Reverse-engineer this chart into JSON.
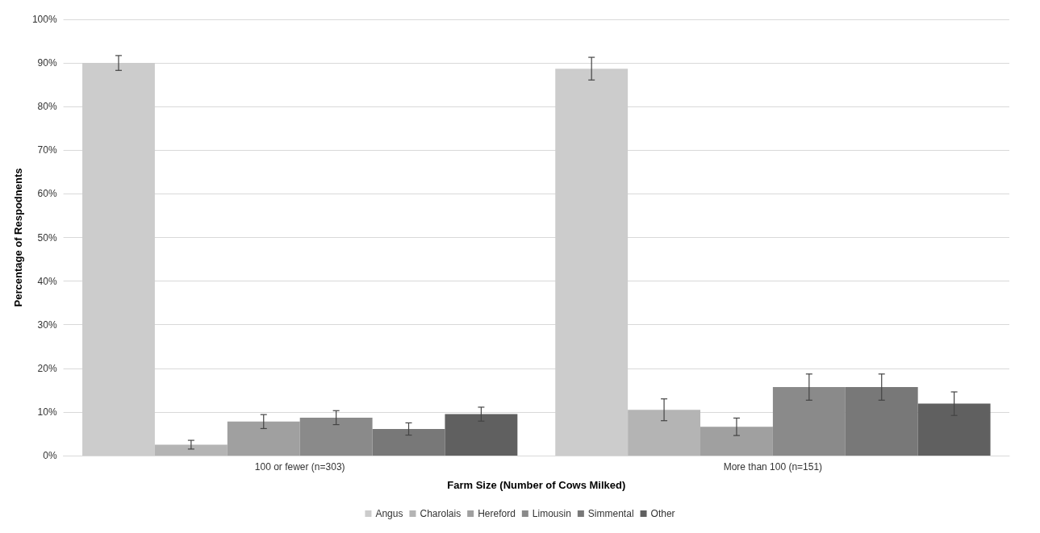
{
  "chart_data": {
    "type": "bar",
    "xlabel": "Farm Size (Number of Cows Milked)",
    "ylabel": "Percentage of Respodnents",
    "categories": [
      "100 or fewer (n=303)",
      "More than 100 (n=151)"
    ],
    "series": [
      {
        "name": "Angus",
        "color": "#cccccc",
        "values": [
          90,
          88.7
        ],
        "errors": [
          1.7,
          2.6
        ]
      },
      {
        "name": "Charolais",
        "color": "#b4b4b4",
        "values": [
          2.5,
          10.5
        ],
        "errors": [
          1.0,
          2.5
        ]
      },
      {
        "name": "Hereford",
        "color": "#a0a0a0",
        "values": [
          7.8,
          6.6
        ],
        "errors": [
          1.6,
          2.0
        ]
      },
      {
        "name": "Limousin",
        "color": "#8a8a8a",
        "values": [
          8.7,
          15.7
        ],
        "errors": [
          1.6,
          3.0
        ]
      },
      {
        "name": "Simmental",
        "color": "#787878",
        "values": [
          6.1,
          15.7
        ],
        "errors": [
          1.4,
          3.0
        ]
      },
      {
        "name": "Other",
        "color": "#606060",
        "values": [
          9.5,
          11.9
        ],
        "errors": [
          1.6,
          2.7
        ]
      }
    ],
    "ylim": [
      0,
      100
    ],
    "yticks": [
      {
        "value": 0,
        "label": "0%"
      },
      {
        "value": 10,
        "label": "10%"
      },
      {
        "value": 20,
        "label": "20%"
      },
      {
        "value": 30,
        "label": "30%"
      },
      {
        "value": 40,
        "label": "40%"
      },
      {
        "value": 50,
        "label": "50%"
      },
      {
        "value": 60,
        "label": "60%"
      },
      {
        "value": 70,
        "label": "70%"
      },
      {
        "value": 80,
        "label": "80%"
      },
      {
        "value": 90,
        "label": "90%"
      },
      {
        "value": 100,
        "label": "100%"
      }
    ],
    "grid": "y",
    "legend": "bottom"
  }
}
